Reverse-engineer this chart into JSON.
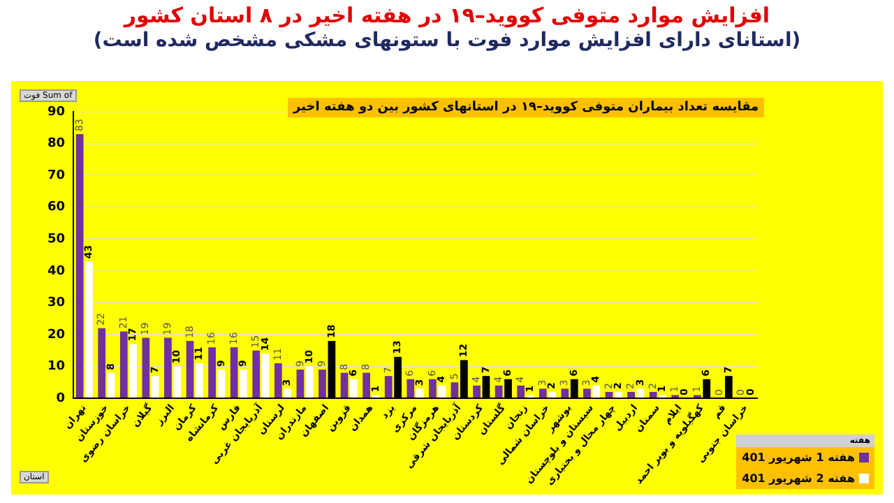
{
  "chart_data": {
    "type": "bar",
    "title": "افزایش موارد متوفی کووید–۱۹ در هفته اخیر در ۸ استان کشور",
    "subtitle": "(استانای دارای افزایش موارد فوت با ستونهای مشکی مشخص شده است)",
    "annotations": [
      "مقایسه تعداد بیماران متوفی کووید–۱۹ در استانهای کشور بین دو هفته اخیر",
      "Sum of فوت",
      "استان"
    ],
    "legend_title": "هفته",
    "categories": [
      "تهران",
      "خوزستان",
      "خراسان رضوی",
      "گیلان",
      "البرز",
      "کرمان",
      "کرمانشاه",
      "فارس",
      "آذربایجان غربی",
      "لرستان",
      "مازندران",
      "اصفهان",
      "قزوین",
      "همدان",
      "یزد",
      "مرکزی",
      "هرمزگان",
      "آذربایجان شرقی",
      "کردستان",
      "گلستان",
      "زنجان",
      "خراسان شمالی",
      "بوشهر",
      "سیستان و بلوچستان",
      "چهار محال و بختیاری",
      "اردبیل",
      "سمنان",
      "ایلام",
      "کهگیلویه و بویر احمد",
      "قم",
      "خراسان جنوبی"
    ],
    "series": [
      {
        "name": "هفته 1 شهریور 401",
        "color": "#7030a0",
        "values": [
          83,
          22,
          21,
          19,
          19,
          18,
          16,
          16,
          15,
          11,
          9,
          9,
          8,
          8,
          7,
          6,
          6,
          5,
          4,
          4,
          4,
          3,
          3,
          3,
          2,
          2,
          2,
          1,
          1,
          0,
          0
        ]
      },
      {
        "name": "هفته 2 شهریور 401",
        "color": "#ffffff",
        "values": [
          43,
          8,
          17,
          7,
          10,
          11,
          9,
          9,
          14,
          3,
          10,
          18,
          6,
          1,
          13,
          3,
          4,
          12,
          7,
          6,
          1,
          2,
          6,
          4,
          2,
          3,
          1,
          0,
          6,
          7,
          0
        ],
        "colors": [
          "#ffffff",
          "#ffffff",
          "#ffffff",
          "#ffffff",
          "#ffffff",
          "#ffffff",
          "#ffffff",
          "#ffffff",
          "#ffffff",
          "#ffffff",
          "#ffffff",
          "#000000",
          "#ffffff",
          "#ffffff",
          "#000000",
          "#ffffff",
          "#ffffff",
          "#000000",
          "#000000",
          "#000000",
          "#ffffff",
          "#ffffff",
          "#000000",
          "#ffffff",
          "#ffffff",
          "#ffffff",
          "#ffffff",
          "#ffffff",
          "#000000",
          "#000000",
          "#ffffff"
        ]
      }
    ],
    "ylim": [
      0,
      90
    ],
    "yticks": [
      0,
      10,
      20,
      30,
      40,
      50,
      60,
      70,
      80,
      90
    ],
    "grid": "y",
    "legend": "bottom right",
    "data_labels": true
  }
}
